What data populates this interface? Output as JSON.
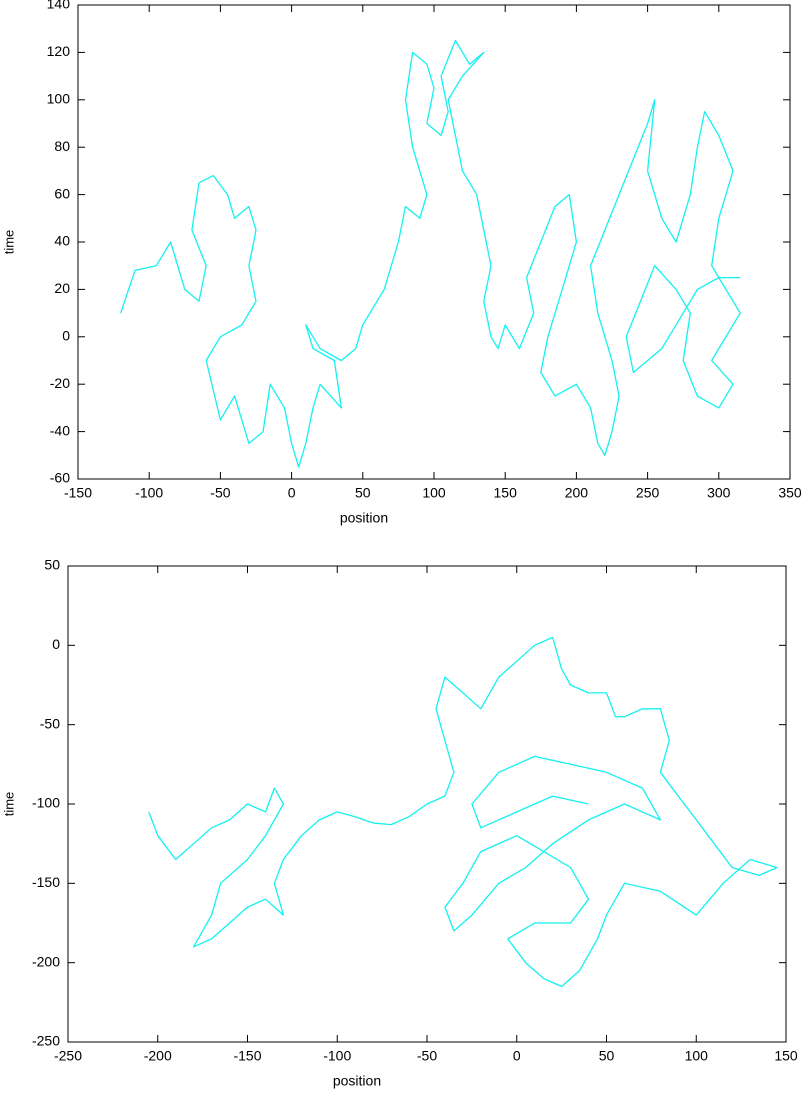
{
  "chart_data": [
    {
      "type": "line",
      "x_label": "position",
      "y_label": "time",
      "xlim": [
        -150,
        350
      ],
      "ylim": [
        -60,
        140
      ],
      "xticks": [
        -150,
        -100,
        -50,
        0,
        50,
        100,
        150,
        200,
        250,
        300,
        350
      ],
      "yticks": [
        -60,
        -40,
        -20,
        0,
        20,
        40,
        60,
        80,
        100,
        120,
        140
      ],
      "series": [
        {
          "color": "#14f0f0",
          "x": [
            -120,
            -110,
            -95,
            -85,
            -75,
            -65,
            -60,
            -70,
            -65,
            -55,
            -45,
            -40,
            -30,
            -25,
            -30,
            -25,
            -35,
            -50,
            -60,
            -50,
            -40,
            -30,
            -20,
            -15,
            -5,
            0,
            5,
            10,
            15,
            20,
            35,
            30,
            15,
            10,
            20,
            35,
            45,
            50,
            60,
            65,
            70,
            75,
            80,
            90,
            95,
            85,
            80,
            85,
            95,
            100,
            95,
            105,
            110,
            105,
            115,
            125,
            135,
            120,
            110,
            115,
            120,
            130,
            135,
            140,
            135,
            140,
            145,
            150,
            160,
            170,
            165,
            175,
            185,
            195,
            200,
            190,
            180,
            175,
            185,
            200,
            210,
            215,
            220,
            225,
            230,
            225,
            215,
            210,
            220,
            230,
            240,
            250,
            255,
            250,
            260,
            270,
            280,
            285,
            290,
            300,
            310,
            300,
            295,
            305,
            315,
            305,
            295,
            310,
            300,
            285,
            275,
            280,
            270,
            255,
            245,
            235,
            240,
            260,
            270,
            285,
            300,
            315
          ],
          "values": [
            10,
            28,
            30,
            40,
            20,
            15,
            30,
            45,
            65,
            68,
            60,
            50,
            55,
            45,
            30,
            15,
            5,
            0,
            -10,
            -35,
            -25,
            -45,
            -40,
            -20,
            -30,
            -45,
            -55,
            -45,
            -30,
            -20,
            -30,
            -10,
            -5,
            5,
            -5,
            -10,
            -5,
            5,
            15,
            20,
            30,
            40,
            55,
            50,
            60,
            80,
            100,
            120,
            115,
            105,
            90,
            85,
            95,
            110,
            125,
            115,
            120,
            110,
            100,
            85,
            70,
            60,
            45,
            30,
            15,
            0,
            -5,
            5,
            -5,
            10,
            25,
            40,
            55,
            60,
            40,
            20,
            0,
            -15,
            -25,
            -20,
            -30,
            -45,
            -50,
            -40,
            -25,
            -10,
            10,
            30,
            45,
            60,
            75,
            90,
            100,
            70,
            50,
            40,
            60,
            80,
            95,
            85,
            70,
            50,
            30,
            20,
            10,
            0,
            -10,
            -20,
            -30,
            -25,
            -10,
            10,
            20,
            30,
            15,
            0,
            -15,
            -5,
            5,
            20,
            25,
            25
          ]
        }
      ]
    },
    {
      "type": "line",
      "x_label": "position",
      "y_label": "time",
      "xlim": [
        -250,
        150
      ],
      "ylim": [
        -250,
        50
      ],
      "xticks": [
        -250,
        -200,
        -150,
        -100,
        -50,
        0,
        50,
        100,
        150
      ],
      "yticks": [
        -250,
        -200,
        -150,
        -100,
        -50,
        0,
        50
      ],
      "series": [
        {
          "color": "#14f0f0",
          "x": [
            -205,
            -200,
            -190,
            -180,
            -170,
            -160,
            -150,
            -140,
            -135,
            -130,
            -140,
            -150,
            -165,
            -170,
            -180,
            -170,
            -160,
            -150,
            -140,
            -130,
            -135,
            -130,
            -120,
            -110,
            -100,
            -90,
            -80,
            -70,
            -60,
            -50,
            -40,
            -35,
            -40,
            -45,
            -40,
            -30,
            -20,
            -10,
            0,
            10,
            20,
            25,
            30,
            40,
            50,
            55,
            60,
            70,
            80,
            85,
            80,
            90,
            100,
            110,
            120,
            135,
            145,
            130,
            115,
            100,
            80,
            60,
            50,
            45,
            35,
            25,
            15,
            5,
            -5,
            10,
            30,
            40,
            30,
            15,
            0,
            -20,
            -30,
            -40,
            -35,
            -25,
            -10,
            5,
            20,
            40,
            60,
            80,
            70,
            50,
            30,
            10,
            -10,
            -25,
            -20,
            0,
            20,
            40
          ],
          "values": [
            -105,
            -120,
            -135,
            -125,
            -115,
            -110,
            -100,
            -105,
            -90,
            -100,
            -120,
            -135,
            -150,
            -170,
            -190,
            -185,
            -175,
            -165,
            -160,
            -170,
            -150,
            -135,
            -120,
            -110,
            -105,
            -108,
            -112,
            -113,
            -108,
            -100,
            -95,
            -80,
            -60,
            -40,
            -20,
            -30,
            -40,
            -20,
            -10,
            0,
            5,
            -15,
            -25,
            -30,
            -30,
            -45,
            -45,
            -40,
            -40,
            -60,
            -80,
            -95,
            -110,
            -125,
            -140,
            -145,
            -140,
            -135,
            -150,
            -170,
            -155,
            -150,
            -170,
            -185,
            -205,
            -215,
            -210,
            -200,
            -185,
            -175,
            -175,
            -160,
            -140,
            -130,
            -120,
            -130,
            -150,
            -165,
            -180,
            -170,
            -150,
            -140,
            -125,
            -110,
            -100,
            -110,
            -90,
            -80,
            -75,
            -70,
            -80,
            -100,
            -115,
            -105,
            -95,
            -100
          ]
        }
      ]
    }
  ]
}
